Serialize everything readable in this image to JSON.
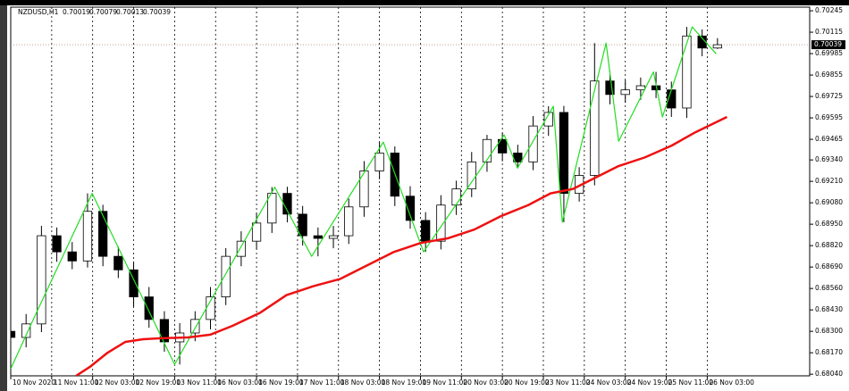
{
  "chart_data": {
    "type": "candlestick",
    "header": {
      "symbol": "NZDUSD,H1",
      "values": [
        0.70019,
        0.70079,
        0.70013,
        0.70039
      ]
    },
    "current_price": 0.70039,
    "xlim": [
      0,
      312
    ],
    "ylim": [
      0.6803,
      0.70267
    ],
    "grid": "x",
    "xticks": [
      {
        "value": 0,
        "label": "10 Nov 2020"
      },
      {
        "value": 16,
        "label": "11 Nov 11:00"
      },
      {
        "value": 32,
        "label": "12 Nov 03:00"
      },
      {
        "value": 48,
        "label": "12 Nov 19:00"
      },
      {
        "value": 64,
        "label": "13 Nov 11:00"
      },
      {
        "value": 80,
        "label": "16 Nov 03:00"
      },
      {
        "value": 96,
        "label": "16 Nov 19:00"
      },
      {
        "value": 112,
        "label": "17 Nov 11:00"
      },
      {
        "value": 128,
        "label": "18 Nov 03:00"
      },
      {
        "value": 144,
        "label": "18 Nov 19:00"
      },
      {
        "value": 160,
        "label": "19 Nov 11:00"
      },
      {
        "value": 176,
        "label": "20 Nov 03:00"
      },
      {
        "value": 192,
        "label": "20 Nov 19:00"
      },
      {
        "value": 208,
        "label": "23 Nov 11:00"
      },
      {
        "value": 224,
        "label": "24 Nov 03:00"
      },
      {
        "value": 240,
        "label": "24 Nov 19:00"
      },
      {
        "value": 256,
        "label": "25 Nov 11:00"
      },
      {
        "value": 272,
        "label": "26 Nov 03:00"
      }
    ],
    "yticks": [
      0.70245,
      0.70115,
      0.69985,
      0.69855,
      0.69725,
      0.69595,
      0.69465,
      {
        "value": 0.6934,
        "label": "0.69340"
      },
      {
        "value": 0.6921,
        "label": "0.69210"
      },
      {
        "value": 0.6908,
        "label": "0.69080"
      },
      {
        "value": 0.6895,
        "label": "0.68950"
      },
      {
        "value": 0.6882,
        "label": "0.68820"
      },
      {
        "value": 0.6869,
        "label": "0.68690"
      },
      {
        "value": 0.6856,
        "label": "0.68560"
      },
      {
        "value": 0.6843,
        "label": "0.68430"
      },
      {
        "value": 0.683,
        "label": "0.68300"
      },
      {
        "value": 0.6817,
        "label": "0.68170"
      },
      {
        "value": 0.6804,
        "label": "0.68040"
      }
    ],
    "x": [
      0,
      6,
      12,
      18,
      24,
      30,
      36,
      42,
      48,
      54,
      60,
      66,
      72,
      78,
      84,
      90,
      96,
      102,
      108,
      114,
      120,
      126,
      132,
      138,
      144,
      150,
      156,
      162,
      168,
      174,
      180,
      186,
      192,
      198,
      204,
      210,
      216,
      222,
      228,
      234,
      240,
      246,
      252,
      258,
      264,
      270,
      276
    ],
    "open": [
      0.683,
      0.68263,
      0.68345,
      0.6888,
      0.68782,
      0.68727,
      0.69028,
      0.68755,
      0.68673,
      0.68509,
      0.68372,
      0.68236,
      0.6829,
      0.68372,
      0.68509,
      0.68755,
      0.68847,
      0.68957,
      0.69137,
      0.69011,
      0.6888,
      0.68864,
      0.6888,
      0.69055,
      0.69273,
      0.69382,
      0.6912,
      0.68973,
      0.68847,
      0.69066,
      0.69164,
      0.69328,
      0.69464,
      0.69382,
      0.69328,
      0.69546,
      0.69628,
      0.69137,
      0.69246,
      0.69819,
      0.69737,
      0.69765,
      0.6979,
      0.69765,
      0.69655,
      0.70092,
      0.70019
    ],
    "high": [
      0.6836,
      0.68405,
      0.6894,
      0.6893,
      0.68842,
      0.69137,
      0.69068,
      0.68815,
      0.68723,
      0.68569,
      0.68422,
      0.6835,
      0.68422,
      0.68569,
      0.68805,
      0.68907,
      0.69017,
      0.69175,
      0.69177,
      0.69061,
      0.6893,
      0.6894,
      0.69105,
      0.69333,
      0.69448,
      0.69422,
      0.6918,
      0.69023,
      0.69126,
      0.69214,
      0.69388,
      0.69492,
      0.69504,
      0.69432,
      0.69606,
      0.69666,
      0.69668,
      0.69296,
      0.70049,
      0.69879,
      0.69825,
      0.6984,
      0.69874,
      0.69815,
      0.70147,
      0.70132,
      0.70079
    ],
    "low": [
      0.68072,
      0.68203,
      0.68295,
      0.68722,
      0.68677,
      0.68687,
      0.68695,
      0.68623,
      0.68449,
      0.68322,
      0.68176,
      0.68099,
      0.6824,
      0.68312,
      0.68459,
      0.68695,
      0.68797,
      0.68897,
      0.68961,
      0.6882,
      0.68755,
      0.68804,
      0.6883,
      0.68995,
      0.69223,
      0.6906,
      0.68923,
      0.68782,
      0.68797,
      0.69006,
      0.69114,
      0.69268,
      0.69332,
      0.6929,
      0.69278,
      0.69486,
      0.68962,
      0.69087,
      0.69186,
      0.69677,
      0.69687,
      0.69705,
      0.69715,
      0.69601,
      0.69595,
      0.69969,
      0.70013
    ],
    "close": [
      0.68263,
      0.68345,
      0.6888,
      0.68782,
      0.68727,
      0.69028,
      0.68755,
      0.68673,
      0.68509,
      0.68372,
      0.68236,
      0.6829,
      0.68372,
      0.68509,
      0.68755,
      0.68847,
      0.68957,
      0.69137,
      0.69011,
      0.6888,
      0.68864,
      0.6888,
      0.69055,
      0.69273,
      0.69382,
      0.6912,
      0.68973,
      0.68847,
      0.69066,
      0.69164,
      0.69328,
      0.69464,
      0.69382,
      0.69328,
      0.69546,
      0.69628,
      0.69137,
      0.69246,
      0.69819,
      0.69737,
      0.69765,
      0.6979,
      0.69765,
      0.69655,
      0.70092,
      0.70019,
      0.70039
    ],
    "lines": [
      {
        "color": "#22dd22",
        "x": [
          0,
          8,
          31.8,
          64,
          103.1,
          117.5,
          145.5,
          161.2,
          192.7,
          197.9,
          211.9,
          215.4,
          232.5,
          237.4,
          251,
          254.5,
          266.1,
          275.5
        ],
        "values": [
          0.68072,
          0.68345,
          0.69137,
          0.68099,
          0.69175,
          0.68755,
          0.69448,
          0.68782,
          0.69492,
          0.6929,
          0.69666,
          0.68962,
          0.70049,
          0.69453,
          0.69874,
          0.69601,
          0.70147,
          0.69983
        ]
      },
      {
        "color": "#ee1111",
        "x": [
          25.5,
          30.8,
          37.8,
          44.8,
          51.7,
          58.7,
          69.2,
          78,
          86.7,
          97.2,
          107.7,
          118.2,
          128.7,
          139.2,
          149.7,
          160.1,
          170.6,
          181.1,
          191.6,
          202.1,
          210.8,
          219.6,
          226.6,
          237.1,
          247.6,
          258,
          266.8,
          279.7
        ],
        "values": [
          0.6803,
          0.68083,
          0.6817,
          0.68236,
          0.68252,
          0.68258,
          0.68263,
          0.6828,
          0.68334,
          0.68411,
          0.6852,
          0.68574,
          0.68618,
          0.687,
          0.68782,
          0.68836,
          0.68864,
          0.68918,
          0.69,
          0.69066,
          0.69137,
          0.69164,
          0.69219,
          0.69301,
          0.69355,
          0.69426,
          0.69503,
          0.69601
        ]
      }
    ]
  }
}
